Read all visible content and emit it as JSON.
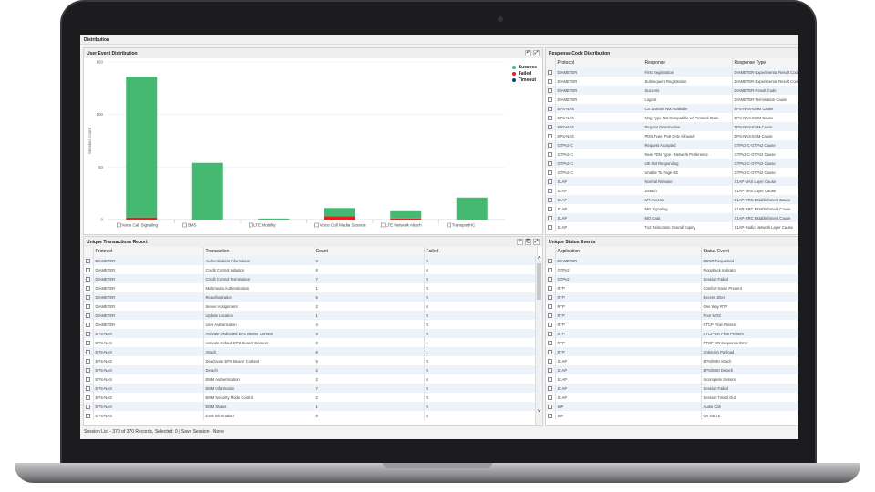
{
  "window": {
    "title": "Distribution"
  },
  "user_event": {
    "title": "User Event Distribution"
  },
  "chart_data": {
    "type": "bar",
    "stacked": true,
    "categories": [
      "Voice Call Signaling",
      "SMS",
      "LTE Mobility",
      "Voice Call Media Session",
      "LTE Network Attach",
      "TransportHC"
    ],
    "series": [
      {
        "name": "Success",
        "color": "#45b872",
        "values": [
          134,
          54,
          1,
          8,
          7,
          21
        ]
      },
      {
        "name": "Failed",
        "color": "#ee1c1c",
        "values": [
          2,
          0,
          0,
          3,
          1,
          0
        ]
      },
      {
        "name": "Timeout",
        "color": "#123f7a",
        "values": [
          0,
          0,
          0,
          0,
          0,
          0
        ]
      }
    ],
    "ylabel": "Session Count",
    "ylim": [
      0,
      150
    ],
    "yticks": [
      0,
      50,
      100,
      150
    ],
    "grid": true,
    "legend": "top-right"
  },
  "response_code": {
    "title": "Response Code Distribution",
    "columns": [
      "Protocol",
      "Response",
      "Response Type"
    ],
    "rows": [
      [
        "DIAMETER",
        "First Registration",
        "DIAMETER-Experimental Result Code"
      ],
      [
        "DIAMETER",
        "Subsequent Registration",
        "DIAMETER-Experimental Result Code"
      ],
      [
        "DIAMETER",
        "Success",
        "DIAMETER-Result Code"
      ],
      [
        "DIAMETER",
        "Logout",
        "DIAMETER-Termination Cause"
      ],
      [
        "EPS-NAS",
        "CS Domain Not Available",
        "EPS-NAS-EMM Cause"
      ],
      [
        "EPS-NAS",
        "Msg Type Not Compatible w/ Protocol State",
        "EPS-NAS-EMM Cause"
      ],
      [
        "EPS-NAS",
        "Regular Deactivation",
        "EPS-NAS-ESM Cause"
      ],
      [
        "EPS-NAS",
        "PDN Type IPv6 Only Allowed",
        "EPS-NAS-ESM Cause"
      ],
      [
        "GTPv2-C",
        "Request Accepted",
        "GTPv2-C-GTPv2 Cause"
      ],
      [
        "GTPv2-C",
        "New PDN Type - Network Preference",
        "GTPv2-C-GTPv2 Cause"
      ],
      [
        "GTPv2-C",
        "UE Not Responding",
        "GTPv2-C-GTPv2 Cause"
      ],
      [
        "GTPv2-C",
        "Unable To Page UE",
        "GTPv2-C-GTPv2 Cause"
      ],
      [
        "S1AP",
        "Normal Release",
        "S1AP-NAS Layer Cause"
      ],
      [
        "S1AP",
        "Detach",
        "S1AP-NAS Layer Cause"
      ],
      [
        "S1AP",
        "MT Access",
        "S1AP-RRC Establishment Cause"
      ],
      [
        "S1AP",
        "MO Signaling",
        "S1AP-RRC Establishment Cause"
      ],
      [
        "S1AP",
        "MO Data",
        "S1AP-RRC Establishment Cause"
      ],
      [
        "S1AP",
        "Tx2 Relocation Overall Expiry",
        "S1AP-Radio Network Layer Cause"
      ]
    ]
  },
  "transactions": {
    "title": "Unique Transactions Report",
    "columns": [
      "Protocol",
      "Transaction",
      "Count",
      "Failed"
    ],
    "rows": [
      [
        "DIAMETER",
        "Authentication Information",
        "3",
        "0"
      ],
      [
        "DIAMETER",
        "Credit Control Initiation",
        "8",
        "0"
      ],
      [
        "DIAMETER",
        "Credit Control Termination",
        "7",
        "0"
      ],
      [
        "DIAMETER",
        "Multimedia Authentication",
        "1",
        "0"
      ],
      [
        "DIAMETER",
        "Reauthorization",
        "5",
        "0"
      ],
      [
        "DIAMETER",
        "Server Assignment",
        "2",
        "0"
      ],
      [
        "DIAMETER",
        "Update Location",
        "1",
        "0"
      ],
      [
        "DIAMETER",
        "User Authorization",
        "4",
        "0"
      ],
      [
        "EPS-NAS",
        "Activate Dedicated EPS Bearer Context",
        "3",
        "0"
      ],
      [
        "EPS-NAS",
        "Activate Default EPS Bearer Context",
        "8",
        "1"
      ],
      [
        "EPS-NAS",
        "Attach",
        "8",
        "1"
      ],
      [
        "EPS-NAS",
        "Deactivate EPS Bearer Context",
        "5",
        "0"
      ],
      [
        "EPS-NAS",
        "Detach",
        "2",
        "0"
      ],
      [
        "EPS-NAS",
        "EMM Authentication",
        "2",
        "0"
      ],
      [
        "EPS-NAS",
        "EMM Information",
        "7",
        "0"
      ],
      [
        "EPS-NAS",
        "EMM Security Mode Control",
        "2",
        "0"
      ],
      [
        "EPS-NAS",
        "EMM Status",
        "1",
        "0"
      ],
      [
        "EPS-NAS",
        "ESM Information",
        "8",
        "0"
      ]
    ]
  },
  "status_events": {
    "title": "Unique Status Events",
    "columns": [
      "Application",
      "Status Event"
    ],
    "rows": [
      [
        "DIAMETER",
        "DDNR Requested"
      ],
      [
        "GTPv2",
        "Piggyback Indicator"
      ],
      [
        "GTPv2",
        "Session Failed"
      ],
      [
        "RTP",
        "Comfort Noise Present"
      ],
      [
        "RTP",
        "Excess Jitter"
      ],
      [
        "RTP",
        "One Way RTP"
      ],
      [
        "RTP",
        "Poor MOS"
      ],
      [
        "RTP",
        "RTCP Flow Present"
      ],
      [
        "RTP",
        "RTCP-XR Flow Present"
      ],
      [
        "RTP",
        "RTCP-XR Sequence Error"
      ],
      [
        "RTP",
        "Unknown Payload"
      ],
      [
        "S1AP",
        "EPS/IMSI Attach"
      ],
      [
        "S1AP",
        "EPS/IMSI Detach"
      ],
      [
        "S1AP",
        "Incomplete Session"
      ],
      [
        "S1AP",
        "Session Failed"
      ],
      [
        "S1AP",
        "Session Timed Out"
      ],
      [
        "SIP",
        "Audio Call"
      ],
      [
        "SIP",
        "On VoLTE"
      ]
    ]
  },
  "status_bar": {
    "text": "Session List - 370 of 370 Records, Selected: 0   |  Save Session - None"
  }
}
